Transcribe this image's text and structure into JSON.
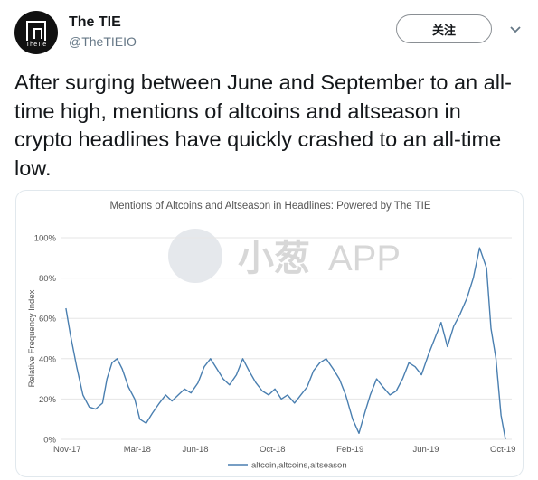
{
  "account": {
    "name": "The TIE",
    "handle": "@TheTIEIO",
    "avatar_text": "TheTie"
  },
  "follow_label": "关注",
  "tweet": {
    "text": "After surging between June and September to an all-time high, mentions of altcoins and altseason in crypto headlines have quickly crashed to an all-time low."
  },
  "watermark": {
    "text": "小葱",
    "text2": "APP"
  },
  "colors": {
    "line": "#4a7fb0",
    "grid": "#e6e6e6",
    "muted": "#657786"
  },
  "chart_data": {
    "type": "line",
    "title": "Mentions of Altcoins and Altseason in Headlines: Powered by The TIE",
    "xlabel": "",
    "ylabel": "Relative Frequency Index",
    "ylim": [
      0,
      100
    ],
    "yticks": [
      0,
      20,
      40,
      60,
      80,
      100
    ],
    "ytick_labels": [
      "0%",
      "20%",
      "40%",
      "60%",
      "80%",
      "100%"
    ],
    "xticks": [
      "Nov-17",
      "Mar-18",
      "Jun-18",
      "Oct-18",
      "Feb-19",
      "Jun-19",
      "Oct-19"
    ],
    "grid": true,
    "legend_position": "bottom",
    "series": [
      {
        "name": "altcoin,altcoins,altseason",
        "x": [
          "2017-11-08",
          "2017-11-15",
          "2017-11-25",
          "2017-12-05",
          "2017-12-15",
          "2017-12-25",
          "2018-01-05",
          "2018-01-12",
          "2018-01-20",
          "2018-01-28",
          "2018-02-05",
          "2018-02-15",
          "2018-02-25",
          "2018-03-05",
          "2018-03-15",
          "2018-03-25",
          "2018-04-05",
          "2018-04-15",
          "2018-04-25",
          "2018-05-05",
          "2018-05-15",
          "2018-05-25",
          "2018-06-05",
          "2018-06-15",
          "2018-06-25",
          "2018-07-05",
          "2018-07-15",
          "2018-07-25",
          "2018-08-05",
          "2018-08-15",
          "2018-08-25",
          "2018-09-05",
          "2018-09-15",
          "2018-09-25",
          "2018-10-05",
          "2018-10-15",
          "2018-10-25",
          "2018-11-05",
          "2018-11-15",
          "2018-11-25",
          "2018-12-05",
          "2018-12-15",
          "2018-12-25",
          "2019-01-05",
          "2019-01-15",
          "2019-01-25",
          "2019-02-05",
          "2019-02-15",
          "2019-02-25",
          "2019-03-05",
          "2019-03-15",
          "2019-03-25",
          "2019-04-05",
          "2019-04-15",
          "2019-04-25",
          "2019-05-05",
          "2019-05-15",
          "2019-05-25",
          "2019-06-05",
          "2019-06-15",
          "2019-06-25",
          "2019-07-05",
          "2019-07-15",
          "2019-07-25",
          "2019-08-05",
          "2019-08-15",
          "2019-08-25",
          "2019-09-05",
          "2019-09-12",
          "2019-09-20",
          "2019-09-28",
          "2019-10-05"
        ],
        "values": [
          65,
          52,
          36,
          22,
          16,
          15,
          18,
          30,
          38,
          40,
          35,
          26,
          20,
          10,
          8,
          13,
          18,
          22,
          19,
          22,
          25,
          23,
          28,
          36,
          40,
          35,
          30,
          27,
          32,
          40,
          34,
          28,
          24,
          22,
          25,
          20,
          22,
          18,
          22,
          26,
          34,
          38,
          40,
          35,
          30,
          22,
          10,
          3,
          14,
          22,
          30,
          26,
          22,
          24,
          30,
          38,
          36,
          32,
          42,
          50,
          58,
          46,
          56,
          62,
          70,
          80,
          95,
          85,
          55,
          40,
          12,
          0
        ]
      }
    ]
  }
}
